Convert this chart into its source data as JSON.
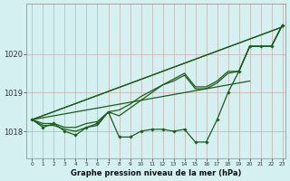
{
  "xlabel": "Graphe pression niveau de la mer (hPa)",
  "background_color": "#d5f0f0",
  "grid_color": "#c8b8b8",
  "line_color": "#1a5c1a",
  "ylim": [
    1017.3,
    1021.3
  ],
  "xlim": [
    -0.5,
    23.3
  ],
  "yticks": [
    1018,
    1019,
    1020
  ],
  "xticks": [
    0,
    1,
    2,
    3,
    4,
    5,
    6,
    7,
    8,
    9,
    10,
    11,
    12,
    13,
    14,
    15,
    16,
    17,
    18,
    19,
    20,
    21,
    22,
    23
  ],
  "series_smooth": [
    [
      [
        0,
        1018.3
      ],
      [
        23,
        1020.7
      ]
    ],
    [
      [
        0,
        1018.3
      ],
      [
        23,
        1020.7
      ]
    ],
    [
      [
        0,
        1018.3
      ],
      [
        20,
        1019.3
      ]
    ]
  ],
  "series_detail": [
    1018.3,
    1018.1,
    1018.2,
    1018.0,
    1017.9,
    1018.1,
    1018.2,
    1018.5,
    1017.85,
    1017.85,
    1018.0,
    1018.05,
    1018.05,
    1018.0,
    1018.05,
    1017.72,
    1017.72,
    1018.3,
    1019.0,
    1019.55,
    1020.2,
    1020.2,
    1020.2,
    1020.75
  ],
  "series_mid1": [
    1018.3,
    1018.15,
    1018.15,
    1018.05,
    1018.0,
    1018.1,
    1018.15,
    1018.5,
    1018.4,
    1018.6,
    1018.8,
    1019.0,
    1019.2,
    1019.35,
    1019.5,
    1019.15,
    1019.15,
    1019.3,
    1019.55,
    1019.55,
    1020.2,
    1020.2,
    1020.2,
    1020.75
  ],
  "series_mid2": [
    1018.3,
    1018.2,
    1018.2,
    1018.1,
    1018.1,
    1018.2,
    1018.25,
    1018.5,
    1018.55,
    1018.7,
    1018.9,
    1019.05,
    1019.2,
    1019.3,
    1019.45,
    1019.1,
    1019.1,
    1019.25,
    1019.5,
    1019.55,
    1020.2,
    1020.2,
    1020.2,
    1020.75
  ]
}
